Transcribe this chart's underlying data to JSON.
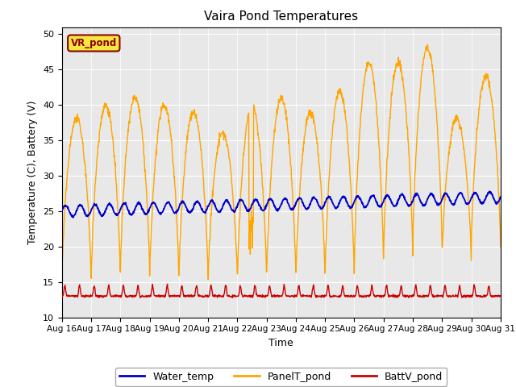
{
  "title": "Vaira Pond Temperatures",
  "xlabel": "Time",
  "ylabel": "Temperature (C), Battery (V)",
  "annotation_text": "VR_pond",
  "annotation_bg": "#f5e642",
  "annotation_border": "#8b0000",
  "ylim": [
    10,
    51
  ],
  "yticks": [
    10,
    15,
    20,
    25,
    30,
    35,
    40,
    45,
    50
  ],
  "bg_color": "#e8e8e8",
  "water_color": "#0000cc",
  "panel_color": "#ffa500",
  "batt_color": "#cc0000",
  "water_label": "Water_temp",
  "panel_label": "PanelT_pond",
  "batt_label": "BattV_pond",
  "xtick_labels": [
    "Aug 16",
    "Aug 17",
    "Aug 18",
    "Aug 19",
    "Aug 20",
    "Aug 21",
    "Aug 22",
    "Aug 23",
    "Aug 24",
    "Aug 25",
    "Aug 26",
    "Aug 27",
    "Aug 28",
    "Aug 29",
    "Aug 30",
    "Aug 31"
  ],
  "n_days": 15,
  "pts_per_day": 96
}
